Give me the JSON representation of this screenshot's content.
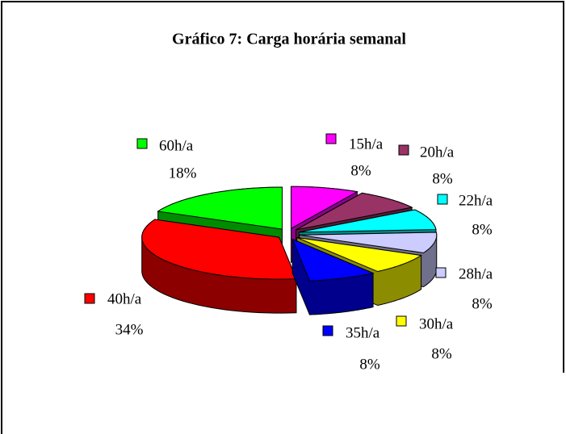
{
  "chart_data": {
    "type": "pie3d",
    "title": "Gráfico 7: Carga horária semanal",
    "categories": [
      "15h/a",
      "20h/a",
      "22h/a",
      "28h/a",
      "30h/a",
      "35h/a",
      "40h/a",
      "60h/a"
    ],
    "values": [
      8,
      8,
      8,
      8,
      8,
      8,
      34,
      18
    ],
    "value_labels": [
      "8%",
      "8%",
      "8%",
      "8%",
      "8%",
      "8%",
      "34%",
      "18%"
    ],
    "colors": [
      "#ff00ff",
      "#993366",
      "#00ffff",
      "#ccccff",
      "#ffff00",
      "#0000ff",
      "#ff0000",
      "#00ff00"
    ]
  }
}
